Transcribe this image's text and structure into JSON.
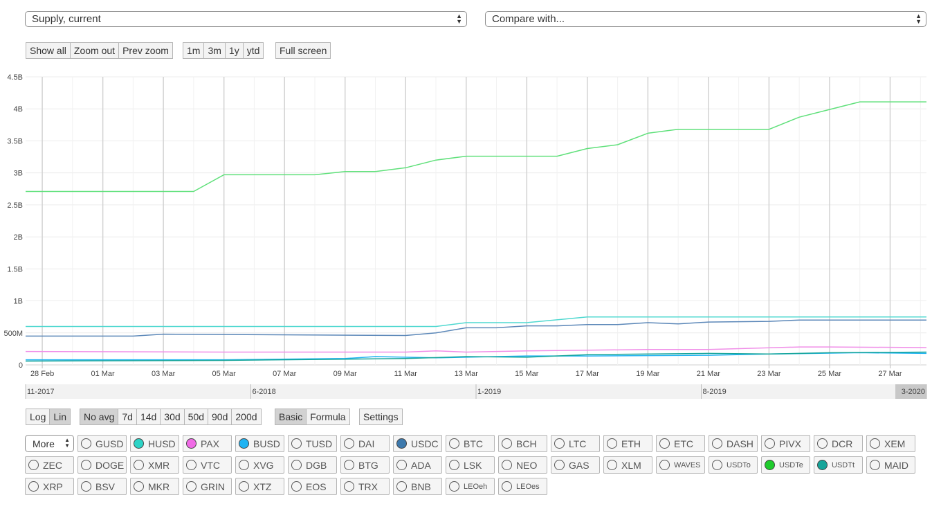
{
  "selects": {
    "metric": "Supply, current",
    "compare": "Compare with..."
  },
  "zoom_buttons": [
    "Show all",
    "Zoom out",
    "Prev zoom"
  ],
  "range_buttons": [
    "1m",
    "3m",
    "1y",
    "ytd"
  ],
  "fullscreen_label": "Full screen",
  "scale_buttons": [
    {
      "label": "Log",
      "active": false
    },
    {
      "label": "Lin",
      "active": true
    }
  ],
  "avg_buttons": [
    {
      "label": "No avg",
      "active": true
    },
    {
      "label": "7d",
      "active": false
    },
    {
      "label": "14d",
      "active": false
    },
    {
      "label": "30d",
      "active": false
    },
    {
      "label": "50d",
      "active": false
    },
    {
      "label": "90d",
      "active": false
    },
    {
      "label": "200d",
      "active": false
    }
  ],
  "mode_buttons": [
    {
      "label": "Basic",
      "active": true
    },
    {
      "label": "Formula",
      "active": false
    }
  ],
  "settings_label": "Settings",
  "more_label": "More",
  "coins": [
    [
      {
        "label": "GUSD",
        "color": null
      },
      {
        "label": "HUSD",
        "color": "#2dd3c6"
      },
      {
        "label": "PAX",
        "color": "#f06be6"
      },
      {
        "label": "BUSD",
        "color": "#1fb3f2"
      },
      {
        "label": "TUSD",
        "color": null
      },
      {
        "label": "DAI",
        "color": null
      },
      {
        "label": "USDC",
        "color": "#3d79ac"
      },
      {
        "label": "BTC",
        "color": null
      },
      {
        "label": "BCH",
        "color": null
      },
      {
        "label": "LTC",
        "color": null
      },
      {
        "label": "ETH",
        "color": null
      },
      {
        "label": "ETC",
        "color": null
      },
      {
        "label": "DASH",
        "color": null
      },
      {
        "label": "PIVX",
        "color": null
      },
      {
        "label": "DCR",
        "color": null
      },
      {
        "label": "XEM",
        "color": null
      }
    ],
    [
      {
        "label": "ZEC",
        "color": null
      },
      {
        "label": "DOGE",
        "color": null
      },
      {
        "label": "XMR",
        "color": null
      },
      {
        "label": "VTC",
        "color": null
      },
      {
        "label": "XVG",
        "color": null
      },
      {
        "label": "DGB",
        "color": null
      },
      {
        "label": "BTG",
        "color": null
      },
      {
        "label": "ADA",
        "color": null
      },
      {
        "label": "LSK",
        "color": null
      },
      {
        "label": "NEO",
        "color": null
      },
      {
        "label": "GAS",
        "color": null
      },
      {
        "label": "XLM",
        "color": null
      },
      {
        "label": "WAVES",
        "color": null,
        "small": true
      },
      {
        "label": "USDTo",
        "color": null,
        "small": true
      },
      {
        "label": "USDTe",
        "color": "#1ecb2c",
        "small": true
      },
      {
        "label": "USDTt",
        "color": "#16a59a",
        "small": true
      },
      {
        "label": "MAID",
        "color": null
      }
    ],
    [
      {
        "label": "XRP",
        "color": null
      },
      {
        "label": "BSV",
        "color": null
      },
      {
        "label": "MKR",
        "color": null
      },
      {
        "label": "GRIN",
        "color": null
      },
      {
        "label": "XTZ",
        "color": null
      },
      {
        "label": "EOS",
        "color": null
      },
      {
        "label": "TRX",
        "color": null
      },
      {
        "label": "BNB",
        "color": null
      },
      {
        "label": "LEOeh",
        "color": null,
        "small": true
      },
      {
        "label": "LEOes",
        "color": null,
        "small": true
      }
    ]
  ],
  "chart_data": {
    "type": "line",
    "ylim": [
      0,
      4500000000
    ],
    "y_ticks": [
      {
        "value": 0,
        "label": "0"
      },
      {
        "value": 500000000,
        "label": "500M"
      },
      {
        "value": 1000000000,
        "label": "1B"
      },
      {
        "value": 1500000000,
        "label": "1.5B"
      },
      {
        "value": 2000000000,
        "label": "2B"
      },
      {
        "value": 2500000000,
        "label": "2.5B"
      },
      {
        "value": 3000000000,
        "label": "3B"
      },
      {
        "value": 3500000000,
        "label": "3.5B"
      },
      {
        "value": 4000000000,
        "label": "4B"
      },
      {
        "value": 4500000000,
        "label": "4.5B"
      }
    ],
    "x_day_range": [
      -0.55,
      29.2
    ],
    "x_ticks": [
      {
        "day": 0,
        "label": "28 Feb"
      },
      {
        "day": 2,
        "label": "01 Mar"
      },
      {
        "day": 4,
        "label": "03 Mar"
      },
      {
        "day": 6,
        "label": "05 Mar"
      },
      {
        "day": 8,
        "label": "07 Mar"
      },
      {
        "day": 10,
        "label": "09 Mar"
      },
      {
        "day": 12,
        "label": "11 Mar"
      },
      {
        "day": 14,
        "label": "13 Mar"
      },
      {
        "day": 16,
        "label": "15 Mar"
      },
      {
        "day": 18,
        "label": "17 Mar"
      },
      {
        "day": 20,
        "label": "19 Mar"
      },
      {
        "day": 22,
        "label": "21 Mar"
      },
      {
        "day": 24,
        "label": "23 Mar"
      },
      {
        "day": 26,
        "label": "25 Mar"
      },
      {
        "day": 28,
        "label": "27 Mar"
      }
    ],
    "series": [
      {
        "color": "#5fe07a",
        "points": [
          [
            -0.55,
            2.71
          ],
          [
            5.0,
            2.71
          ],
          [
            6.0,
            2.97
          ],
          [
            9.0,
            2.97
          ],
          [
            10.0,
            3.02
          ],
          [
            11.0,
            3.02
          ],
          [
            12.0,
            3.08
          ],
          [
            13.0,
            3.2
          ],
          [
            14.0,
            3.26
          ],
          [
            17.0,
            3.26
          ],
          [
            18.0,
            3.38
          ],
          [
            19.0,
            3.44
          ],
          [
            20.0,
            3.62
          ],
          [
            21.0,
            3.68
          ],
          [
            24.0,
            3.68
          ],
          [
            25.0,
            3.87
          ],
          [
            26.0,
            3.99
          ],
          [
            27.0,
            4.11
          ],
          [
            29.2,
            4.11
          ]
        ]
      },
      {
        "color": "#4fd8d0",
        "points": [
          [
            -0.55,
            0.6
          ],
          [
            13.0,
            0.6
          ],
          [
            14.0,
            0.66
          ],
          [
            16.0,
            0.66
          ],
          [
            18.0,
            0.75
          ],
          [
            29.2,
            0.75
          ]
        ]
      },
      {
        "color": "#5b87b8",
        "points": [
          [
            -0.55,
            0.45
          ],
          [
            3.0,
            0.45
          ],
          [
            4.0,
            0.48
          ],
          [
            12.0,
            0.46
          ],
          [
            13.0,
            0.5
          ],
          [
            14.0,
            0.58
          ],
          [
            15.0,
            0.58
          ],
          [
            16.0,
            0.61
          ],
          [
            17.0,
            0.61
          ],
          [
            18.0,
            0.63
          ],
          [
            19.0,
            0.63
          ],
          [
            20.0,
            0.66
          ],
          [
            21.0,
            0.64
          ],
          [
            22.0,
            0.67
          ],
          [
            24.0,
            0.68
          ],
          [
            25.0,
            0.7
          ],
          [
            29.2,
            0.7
          ]
        ]
      },
      {
        "color": "#f08ee8",
        "points": [
          [
            -0.55,
            0.21
          ],
          [
            6.0,
            0.2
          ],
          [
            12.0,
            0.2
          ],
          [
            13.0,
            0.22
          ],
          [
            14.0,
            0.2
          ],
          [
            16.0,
            0.22
          ],
          [
            20.0,
            0.24
          ],
          [
            22.0,
            0.24
          ],
          [
            25.0,
            0.28
          ],
          [
            26.0,
            0.28
          ],
          [
            29.2,
            0.27
          ]
        ]
      },
      {
        "color": "#1fb3f2",
        "points": [
          [
            -0.55,
            0.08
          ],
          [
            6.0,
            0.08
          ],
          [
            10.0,
            0.1
          ],
          [
            11.0,
            0.13
          ],
          [
            12.0,
            0.12
          ],
          [
            13.0,
            0.11
          ],
          [
            14.0,
            0.12
          ],
          [
            16.0,
            0.14
          ],
          [
            18.0,
            0.14
          ],
          [
            22.0,
            0.15
          ],
          [
            24.0,
            0.17
          ],
          [
            27.0,
            0.19
          ],
          [
            29.2,
            0.18
          ]
        ]
      },
      {
        "color": "#16a59a",
        "points": [
          [
            -0.55,
            0.06
          ],
          [
            6.0,
            0.07
          ],
          [
            10.0,
            0.09
          ],
          [
            12.0,
            0.1
          ],
          [
            14.0,
            0.13
          ],
          [
            16.0,
            0.12
          ],
          [
            18.0,
            0.16
          ],
          [
            22.0,
            0.18
          ],
          [
            24.0,
            0.17
          ],
          [
            26.0,
            0.19
          ],
          [
            29.2,
            0.2
          ]
        ]
      }
    ],
    "navigator_labels": [
      {
        "frac": 0.0,
        "label": "11-2017"
      },
      {
        "frac": 0.25,
        "label": "6-2018"
      },
      {
        "frac": 0.5,
        "label": "1-2019"
      },
      {
        "frac": 0.75,
        "label": "8-2019"
      },
      {
        "frac": 1.0,
        "label": "3-2020"
      }
    ]
  }
}
